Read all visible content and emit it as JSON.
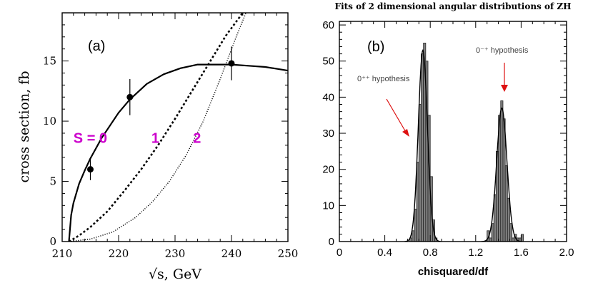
{
  "chart_data": [
    {
      "type": "line",
      "panel_label": "(a)",
      "title": "",
      "xlabel": "√s, GeV",
      "ylabel": "cross section, fb",
      "xlim": [
        210,
        250
      ],
      "ylim": [
        0,
        19
      ],
      "x_ticks": [
        210,
        220,
        230,
        240,
        250
      ],
      "y_ticks": [
        0,
        5,
        10,
        15
      ],
      "series": [
        {
          "name": "S = 0",
          "style": "solid",
          "x": [
            211.2,
            211.6,
            212,
            213,
            214,
            215,
            217,
            220,
            222,
            225,
            228,
            231,
            234,
            237,
            240,
            243,
            246,
            250
          ],
          "y": [
            0,
            2.2,
            3.2,
            4.8,
            5.9,
            6.9,
            8.6,
            10.7,
            11.8,
            13.1,
            13.9,
            14.4,
            14.7,
            14.7,
            14.7,
            14.6,
            14.5,
            14.2
          ]
        },
        {
          "name": "1",
          "style": "dashed",
          "x": [
            211.2,
            213,
            215,
            218,
            221,
            224,
            227,
            230,
            233,
            236,
            239,
            242,
            243.4
          ],
          "y": [
            0,
            0.5,
            1.2,
            2.5,
            4.2,
            6.0,
            8.0,
            10.2,
            12.5,
            14.8,
            17.1,
            19.0,
            19.6
          ]
        },
        {
          "name": "2",
          "style": "dotted",
          "x": [
            211.2,
            215,
            219,
            223,
            226,
            229,
            232,
            235,
            238,
            241,
            243
          ],
          "y": [
            0,
            0.2,
            0.8,
            2.0,
            3.3,
            5.0,
            7.2,
            10.0,
            13.5,
            17.2,
            19.5
          ]
        }
      ],
      "points": {
        "x": [
          215,
          222,
          240
        ],
        "y": [
          6.0,
          12.0,
          14.8
        ],
        "err": [
          0.9,
          1.5,
          1.4
        ]
      },
      "annotations": [
        {
          "text": "S = 0",
          "x": 212,
          "y": 8.2
        },
        {
          "text": "1",
          "x": 225.8,
          "y": 8.2
        },
        {
          "text": "2",
          "x": 233.2,
          "y": 8.2
        }
      ],
      "annotation_color": "#cc00cc"
    },
    {
      "type": "bar",
      "panel_label": "(b)",
      "title": "Fits of  2 dimensional angular distributions of ZH",
      "xlabel": "chisquared/df",
      "ylabel": "",
      "xlim": [
        0,
        2.0
      ],
      "ylim": [
        0,
        61
      ],
      "x_ticks": [
        0,
        0.4,
        0.8,
        1.2,
        1.6,
        2.0
      ],
      "y_ticks": [
        0,
        10,
        20,
        30,
        40,
        50,
        60
      ],
      "bin_width": 0.02,
      "bin_starts": [
        0.62,
        0.64,
        0.66,
        0.68,
        0.7,
        0.72,
        0.74,
        0.76,
        0.78,
        0.8,
        0.82,
        0.84,
        1.3,
        1.32,
        1.34,
        1.36,
        1.38,
        1.4,
        1.42,
        1.44,
        1.46,
        1.48,
        1.5,
        1.52,
        1.54,
        1.56,
        1.58,
        1.6
      ],
      "counts": [
        1,
        3,
        9,
        22,
        38,
        52,
        55,
        50,
        35,
        18,
        6,
        1,
        3,
        1,
        5,
        13,
        25,
        35,
        39,
        34,
        21,
        12,
        5,
        1,
        2,
        1,
        1,
        2
      ],
      "fit_curves": [
        {
          "mean": 0.735,
          "sigma": 0.04,
          "amplitude": 53
        },
        {
          "mean": 1.43,
          "sigma": 0.045,
          "amplitude": 37
        }
      ],
      "bar_color": "#808080",
      "annotations": [
        {
          "text": "0⁺⁺ hypothesis"
        },
        {
          "text": "0⁻⁺ hypothesis"
        }
      ],
      "arrow_color": "#dd1111"
    }
  ]
}
